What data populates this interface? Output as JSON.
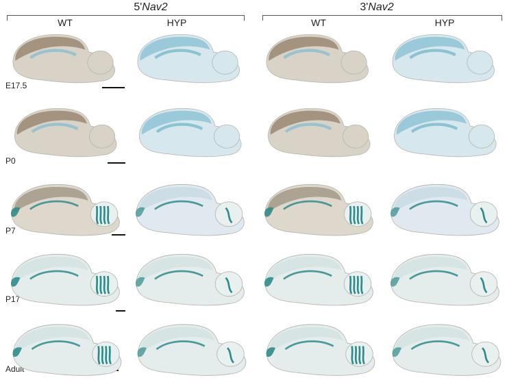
{
  "groups": [
    {
      "prefix": "5'",
      "gene": "Nav2"
    },
    {
      "prefix": "3'",
      "gene": "Nav2"
    }
  ],
  "columns": [
    "WT",
    "HYP",
    "WT",
    "HYP"
  ],
  "rows": [
    "E17.5",
    "P0",
    "P7",
    "P17",
    "Adult"
  ],
  "colors": {
    "wt_stain_brown": "#9a8a72",
    "hyp_stain_blue": "#8fc4d6",
    "xgal_teal": "#2f8c8c",
    "tissue_pale": "#e4ecec"
  }
}
